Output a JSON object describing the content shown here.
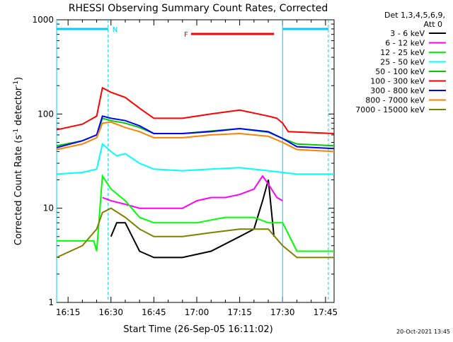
{
  "chart_data": {
    "type": "line",
    "title": "RHESSI Observing Summary Count Rates, Corrected",
    "xlabel": "Start Time (26-Sep-05 16:11:02)",
    "ylabel": "Corrected Count Rate (s-1 detector-1)",
    "ylabel_parts": [
      "Corrected Count Rate (s",
      "-1",
      " detector",
      "-1",
      ")"
    ],
    "y_scale": "log",
    "ylim": [
      1,
      1000
    ],
    "xlim_minutes": [
      16.1,
      17.8
    ],
    "xlim_clock": [
      "16:11",
      "17:48"
    ],
    "x_ticks": [
      "16:15",
      "16:30",
      "16:45",
      "17:00",
      "17:15",
      "17:30",
      "17:45"
    ],
    "y_ticks": [
      "1",
      "10",
      "100",
      "1000"
    ],
    "legend_header": [
      "Det 1,3,4,5,6,9,",
      "Att 0"
    ],
    "legend_placement": "right",
    "series": [
      {
        "name": "3 - 6 keV",
        "color": "#000000",
        "x": [
          "16:30",
          "16:32",
          "16:35",
          "16:40",
          "16:45",
          "16:55",
          "17:05",
          "17:15",
          "17:20",
          "17:23",
          "17:25",
          "17:27"
        ],
        "y": [
          5,
          7,
          7,
          3.5,
          3,
          3,
          3.5,
          5,
          6,
          12,
          20,
          5
        ]
      },
      {
        "name": "6 - 12 keV",
        "color": "#ff00ff",
        "x": [
          "16:27",
          "16:30",
          "16:35",
          "16:40",
          "16:45",
          "16:55",
          "17:00",
          "17:05",
          "17:10",
          "17:15",
          "17:20",
          "17:23",
          "17:25",
          "17:28",
          "17:30"
        ],
        "y": [
          13,
          12,
          11,
          10,
          10,
          10,
          12,
          13,
          13,
          14,
          16,
          22,
          18,
          13,
          12
        ]
      },
      {
        "name": "12 - 25 keV",
        "color": "#00ff00",
        "x": [
          "16:11",
          "16:20",
          "16:24",
          "16:25",
          "16:27",
          "16:30",
          "16:35",
          "16:40",
          "16:45",
          "16:55",
          "17:00",
          "17:05",
          "17:10",
          "17:15",
          "17:20",
          "17:25",
          "17:30",
          "17:35",
          "17:48"
        ],
        "y": [
          4.5,
          4.5,
          4.5,
          3.5,
          22,
          16,
          12,
          8,
          7,
          7,
          7,
          7.5,
          8,
          8,
          8,
          7,
          7,
          3.5,
          3.5
        ]
      },
      {
        "name": "25 - 50 keV",
        "color": "#00ffff",
        "x": [
          "16:11",
          "16:20",
          "16:25",
          "16:27",
          "16:30",
          "16:32",
          "16:35",
          "16:40",
          "16:45",
          "16:55",
          "17:05",
          "17:15",
          "17:25",
          "17:30",
          "17:35",
          "17:48"
        ],
        "y": [
          23,
          24,
          26,
          48,
          40,
          36,
          38,
          30,
          26,
          25,
          26,
          27,
          25,
          24,
          23,
          23
        ]
      },
      {
        "name": "50 - 100 keV",
        "color": "#00cc00",
        "x": [
          "16:11",
          "16:20",
          "16:25",
          "16:27",
          "16:30",
          "16:35",
          "16:40",
          "16:45",
          "16:55",
          "17:05",
          "17:15",
          "17:25",
          "17:30",
          "17:35",
          "17:48"
        ],
        "y": [
          46,
          52,
          60,
          90,
          85,
          80,
          72,
          62,
          62,
          66,
          70,
          64,
          55,
          48,
          46
        ]
      },
      {
        "name": "100 - 300 keV",
        "color": "#ff0000",
        "x": [
          "16:11",
          "16:20",
          "16:25",
          "16:27",
          "16:30",
          "16:35",
          "16:40",
          "16:45",
          "16:55",
          "17:05",
          "17:15",
          "17:25",
          "17:28",
          "17:30",
          "17:32",
          "17:48"
        ],
        "y": [
          68,
          78,
          95,
          190,
          170,
          150,
          115,
          90,
          90,
          100,
          110,
          95,
          90,
          80,
          65,
          62
        ]
      },
      {
        "name": "300 - 800 keV",
        "color": "#0000ff",
        "x": [
          "16:11",
          "16:20",
          "16:25",
          "16:27",
          "16:30",
          "16:35",
          "16:40",
          "16:45",
          "16:55",
          "17:05",
          "17:15",
          "17:25",
          "17:30",
          "17:35",
          "17:48"
        ],
        "y": [
          44,
          52,
          60,
          95,
          90,
          85,
          75,
          62,
          62,
          65,
          70,
          65,
          55,
          45,
          43
        ]
      },
      {
        "name": "800 - 7000 keV",
        "color": "#ff8000",
        "x": [
          "16:11",
          "16:20",
          "16:25",
          "16:27",
          "16:30",
          "16:35",
          "16:40",
          "16:45",
          "16:55",
          "17:05",
          "17:15",
          "17:25",
          "17:30",
          "17:35",
          "17:48"
        ],
        "y": [
          42,
          48,
          56,
          80,
          82,
          72,
          65,
          56,
          56,
          60,
          62,
          58,
          50,
          42,
          40
        ]
      },
      {
        "name": "7000 - 15000 keV",
        "color": "#808000",
        "x": [
          "16:11",
          "16:20",
          "16:25",
          "16:27",
          "16:30",
          "16:35",
          "16:40",
          "16:45",
          "16:55",
          "17:05",
          "17:15",
          "17:25",
          "17:30",
          "17:35",
          "17:48"
        ],
        "y": [
          3,
          4,
          6,
          9,
          10,
          8,
          6,
          5,
          5,
          5.5,
          6,
          6,
          4,
          3,
          3
        ]
      }
    ],
    "annotations": [
      {
        "label": "N",
        "color": "#00ccff",
        "start": "16:11",
        "end": "16:29"
      },
      {
        "label": "F",
        "color": "#ff0000",
        "start": "16:58",
        "end": "17:27"
      }
    ],
    "extra_segments": [
      {
        "color": "#00ccff",
        "start": "17:30",
        "end": "17:46"
      }
    ],
    "markers": [
      "16:11",
      "16:29",
      "17:30",
      "17:46"
    ],
    "footer_date": "20-Oct-2021 13:45"
  }
}
